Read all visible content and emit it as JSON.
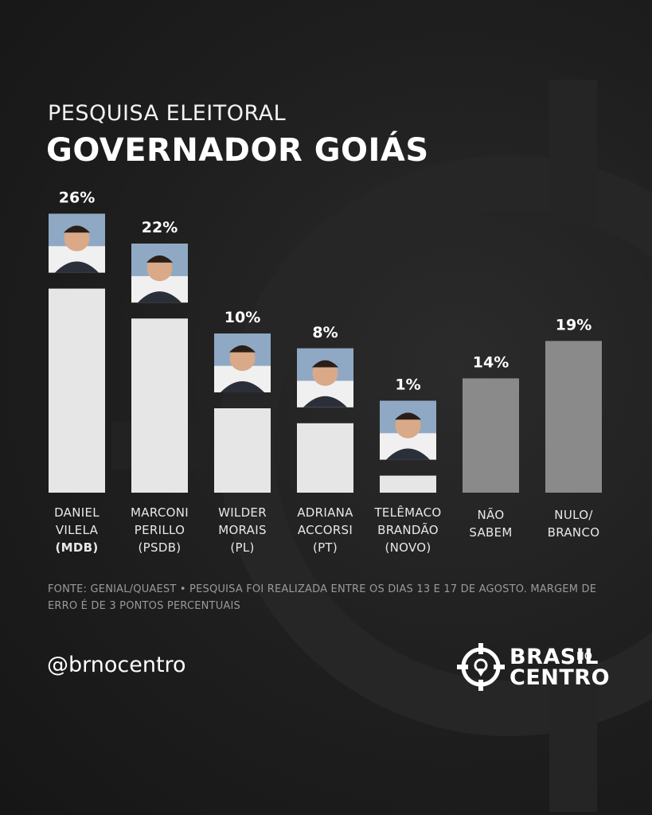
{
  "header": {
    "subtitle": "PESQUISA ELEITORAL",
    "title": "GOVERNADOR GOIÁS"
  },
  "chart_data": {
    "type": "bar",
    "categories": [
      "DANIEL VILELA (MDB)",
      "MARCONI PERILLO (PSDB)",
      "WILDER MORAIS (PL)",
      "ADRIANA ACCORSI (PT)",
      "TELÊMACO BRANDÃO (NOVO)",
      "NÃO SABEM",
      "NULO/ BRANCO"
    ],
    "values": [
      26,
      22,
      10,
      8,
      1,
      14,
      19
    ],
    "value_labels": [
      "26%",
      "22%",
      "10%",
      "8%",
      "1%",
      "14%",
      "19%"
    ],
    "bar_colors": [
      "#e6e6e6",
      "#e6e6e6",
      "#e6e6e6",
      "#e6e6e6",
      "#e6e6e6",
      "#8a8a8a",
      "#8a8a8a"
    ],
    "has_photo": [
      true,
      true,
      true,
      true,
      true,
      false,
      false
    ],
    "label_lines": [
      [
        "DANIEL",
        "VILELA"
      ],
      [
        "MARCONI",
        "PERILLO"
      ],
      [
        "WILDER",
        "MORAIS"
      ],
      [
        "ADRIANA",
        "ACCORSI"
      ],
      [
        "TELÊMACO",
        "BRANDÃO"
      ],
      [
        "NÃO",
        "SABEM"
      ],
      [
        "NULO/",
        "BRANCO"
      ]
    ],
    "parties": [
      "(MDB)",
      "(PSDB)",
      "(PL)",
      "(PT)",
      "(NOVO)",
      "",
      ""
    ],
    "xlabel": "",
    "ylabel": "",
    "grid": false,
    "legend": "none"
  },
  "footer": {
    "source": "FONTE: GENIAL/QUAEST • PESQUISA FOI REALIZADA ENTRE OS DIAS 13 E 17 DE AGOSTO. MARGEM DE ERRO É DE 3 PONTOS PERCENTUAIS",
    "handle": "@brnocentro"
  },
  "logo": {
    "line1": "BRASIL",
    "small": "NO",
    "line2": "CENTRO"
  },
  "colors": {
    "background": "#1e1e1e",
    "candidate_bar": "#e6e6e6",
    "other_bar": "#8a8a8a",
    "text": "#ffffff"
  }
}
